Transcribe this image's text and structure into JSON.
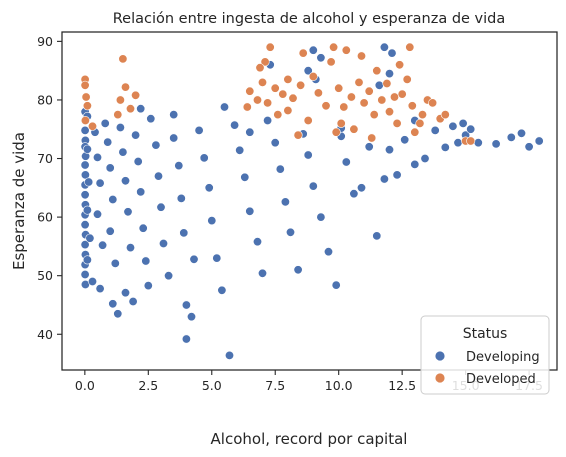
{
  "chart_data": {
    "type": "scatter",
    "title": "Relación entre ingesta de alcohol y esperanza de vida",
    "xlabel": "Alcohol, record por capital",
    "ylabel": "Esperanza de vida",
    "xlim": [
      -0.9,
      18.6
    ],
    "ylim": [
      33.9,
      91.6
    ],
    "xticks": [
      "0.0",
      "2.5",
      "5.0",
      "7.5",
      "10.0",
      "12.5",
      "15.0",
      "17.5"
    ],
    "xtick_values": [
      0,
      2.5,
      5,
      7.5,
      10,
      12.5,
      15,
      17.5
    ],
    "yticks": [
      "40",
      "50",
      "60",
      "70",
      "80",
      "90"
    ],
    "ytick_values": [
      40,
      50,
      60,
      70,
      80,
      90
    ],
    "grid": false,
    "legend": {
      "title": "Status",
      "placement": "bottom-right"
    },
    "series": [
      {
        "name": "Developing",
        "color": "#4c72b0",
        "points": [
          [
            0.01,
            78.0
          ],
          [
            0.01,
            76.5
          ],
          [
            0.01,
            74.8
          ],
          [
            0.02,
            73.1
          ],
          [
            0.01,
            72.0
          ],
          [
            0.03,
            70.4
          ],
          [
            0.01,
            68.9
          ],
          [
            0.02,
            67.2
          ],
          [
            0.01,
            65.5
          ],
          [
            0.01,
            63.8
          ],
          [
            0.02,
            62.1
          ],
          [
            0.01,
            60.4
          ],
          [
            0.01,
            58.7
          ],
          [
            0.03,
            57.0
          ],
          [
            0.01,
            55.3
          ],
          [
            0.02,
            53.6
          ],
          [
            0.01,
            51.9
          ],
          [
            0.01,
            50.2
          ],
          [
            0.02,
            48.5
          ],
          [
            0.1,
            77.2
          ],
          [
            0.1,
            71.6
          ],
          [
            0.15,
            66.0
          ],
          [
            0.1,
            61.2
          ],
          [
            0.2,
            56.4
          ],
          [
            0.1,
            52.7
          ],
          [
            0.3,
            49.0
          ],
          [
            0.4,
            74.5
          ],
          [
            0.5,
            70.2
          ],
          [
            0.6,
            65.8
          ],
          [
            0.5,
            60.5
          ],
          [
            0.7,
            55.2
          ],
          [
            0.6,
            47.8
          ],
          [
            0.8,
            76.0
          ],
          [
            0.9,
            72.8
          ],
          [
            1.0,
            68.4
          ],
          [
            1.1,
            63.0
          ],
          [
            1.0,
            57.6
          ],
          [
            1.2,
            52.1
          ],
          [
            1.1,
            45.2
          ],
          [
            1.3,
            43.5
          ],
          [
            1.4,
            75.3
          ],
          [
            1.5,
            71.1
          ],
          [
            1.6,
            66.2
          ],
          [
            1.7,
            60.9
          ],
          [
            1.8,
            54.8
          ],
          [
            1.6,
            47.1
          ],
          [
            1.9,
            45.6
          ],
          [
            2.0,
            74.0
          ],
          [
            2.1,
            69.5
          ],
          [
            2.2,
            64.3
          ],
          [
            2.3,
            58.1
          ],
          [
            2.4,
            52.5
          ],
          [
            2.5,
            48.3
          ],
          [
            2.6,
            76.8
          ],
          [
            2.8,
            72.3
          ],
          [
            2.9,
            67.0
          ],
          [
            3.0,
            61.7
          ],
          [
            3.1,
            55.5
          ],
          [
            3.3,
            50.0
          ],
          [
            3.5,
            73.5
          ],
          [
            3.7,
            68.8
          ],
          [
            3.8,
            63.2
          ],
          [
            3.9,
            57.3
          ],
          [
            4.0,
            45.0
          ],
          [
            4.0,
            39.2
          ],
          [
            4.2,
            43.0
          ],
          [
            4.3,
            52.8
          ],
          [
            4.5,
            74.8
          ],
          [
            4.7,
            70.1
          ],
          [
            4.9,
            65.0
          ],
          [
            5.0,
            59.4
          ],
          [
            5.2,
            53.0
          ],
          [
            5.4,
            47.5
          ],
          [
            5.5,
            78.8
          ],
          [
            5.7,
            36.4
          ],
          [
            5.9,
            75.7
          ],
          [
            6.1,
            71.4
          ],
          [
            6.3,
            66.8
          ],
          [
            6.5,
            61.0
          ],
          [
            6.8,
            55.8
          ],
          [
            7.0,
            50.4
          ],
          [
            7.2,
            76.5
          ],
          [
            7.5,
            72.7
          ],
          [
            7.7,
            68.2
          ],
          [
            7.9,
            62.6
          ],
          [
            8.1,
            57.4
          ],
          [
            8.4,
            51.0
          ],
          [
            8.6,
            74.2
          ],
          [
            8.8,
            70.6
          ],
          [
            9.0,
            65.3
          ],
          [
            9.3,
            60.0
          ],
          [
            9.6,
            54.1
          ],
          [
            9.9,
            48.4
          ],
          [
            10.1,
            73.8
          ],
          [
            10.3,
            69.4
          ],
          [
            10.6,
            64.0
          ],
          [
            10.9,
            65.0
          ],
          [
            11.2,
            72.0
          ],
          [
            11.5,
            56.8
          ],
          [
            11.8,
            66.5
          ],
          [
            12.0,
            71.5
          ],
          [
            12.3,
            67.2
          ],
          [
            12.6,
            73.2
          ],
          [
            13.0,
            69.0
          ],
          [
            13.4,
            70.0
          ],
          [
            13.8,
            74.8
          ],
          [
            14.2,
            71.9
          ],
          [
            14.7,
            72.7
          ],
          [
            15.0,
            74.0
          ],
          [
            15.5,
            72.7
          ],
          [
            16.2,
            72.5
          ],
          [
            16.8,
            73.6
          ],
          [
            17.2,
            74.3
          ],
          [
            17.5,
            72.0
          ],
          [
            17.9,
            73.0
          ],
          [
            9.0,
            88.5
          ],
          [
            9.3,
            87.2
          ],
          [
            9.1,
            83.5
          ],
          [
            8.8,
            85.0
          ],
          [
            11.8,
            89.0
          ],
          [
            12.1,
            88.0
          ],
          [
            12.0,
            84.5
          ],
          [
            11.6,
            82.5
          ],
          [
            7.3,
            86.0
          ],
          [
            10.1,
            75.2
          ],
          [
            13.0,
            76.5
          ],
          [
            14.5,
            75.5
          ],
          [
            15.2,
            75.0
          ],
          [
            14.9,
            76.0
          ],
          [
            6.5,
            74.5
          ],
          [
            3.5,
            77.5
          ],
          [
            2.2,
            78.5
          ]
        ]
      },
      {
        "name": "Developed",
        "color": "#dd8452",
        "points": [
          [
            0.01,
            83.5
          ],
          [
            0.01,
            82.5
          ],
          [
            0.05,
            80.5
          ],
          [
            0.1,
            79.0
          ],
          [
            0.02,
            76.5
          ],
          [
            0.3,
            75.5
          ],
          [
            1.5,
            87.0
          ],
          [
            1.6,
            82.2
          ],
          [
            1.4,
            80.0
          ],
          [
            1.8,
            78.5
          ],
          [
            2.0,
            80.8
          ],
          [
            1.3,
            77.5
          ],
          [
            6.5,
            81.5
          ],
          [
            6.8,
            80.0
          ],
          [
            6.4,
            78.8
          ],
          [
            7.0,
            83.0
          ],
          [
            7.1,
            86.5
          ],
          [
            7.3,
            89.0
          ],
          [
            7.5,
            82.0
          ],
          [
            7.2,
            79.5
          ],
          [
            7.6,
            77.5
          ],
          [
            7.8,
            81.0
          ],
          [
            8.0,
            83.5
          ],
          [
            8.2,
            80.3
          ],
          [
            8.5,
            82.5
          ],
          [
            8.0,
            78.2
          ],
          [
            8.8,
            76.5
          ],
          [
            8.4,
            74.0
          ],
          [
            9.2,
            81.2
          ],
          [
            9.0,
            84.0
          ],
          [
            9.5,
            79.0
          ],
          [
            9.7,
            86.5
          ],
          [
            9.8,
            89.0
          ],
          [
            10.0,
            82.0
          ],
          [
            10.2,
            78.8
          ],
          [
            10.5,
            80.5
          ],
          [
            10.1,
            76.0
          ],
          [
            10.8,
            83.0
          ],
          [
            10.9,
            87.5
          ],
          [
            11.0,
            79.5
          ],
          [
            11.2,
            81.5
          ],
          [
            11.4,
            77.5
          ],
          [
            11.5,
            85.0
          ],
          [
            11.7,
            80.0
          ],
          [
            11.9,
            82.8
          ],
          [
            12.0,
            78.0
          ],
          [
            12.2,
            80.5
          ],
          [
            12.3,
            76.0
          ],
          [
            12.5,
            81.0
          ],
          [
            12.8,
            89.0
          ],
          [
            12.7,
            83.5
          ],
          [
            12.9,
            79.0
          ],
          [
            13.0,
            74.5
          ],
          [
            13.3,
            77.5
          ],
          [
            13.5,
            80.0
          ],
          [
            13.2,
            76.0
          ],
          [
            14.0,
            76.8
          ],
          [
            14.2,
            77.5
          ],
          [
            15.0,
            73.0
          ],
          [
            15.2,
            73.0
          ],
          [
            10.6,
            75.0
          ],
          [
            11.3,
            73.5
          ],
          [
            9.9,
            74.5
          ],
          [
            12.4,
            86.0
          ],
          [
            8.6,
            88.0
          ],
          [
            6.9,
            85.5
          ],
          [
            10.3,
            88.5
          ],
          [
            13.7,
            79.5
          ]
        ]
      }
    ]
  }
}
